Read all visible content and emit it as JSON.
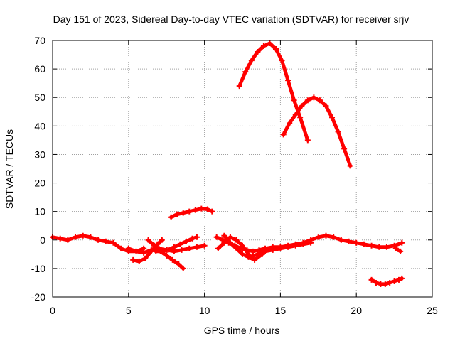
{
  "chart_data": {
    "type": "scatter",
    "title": "Day 151 of 2023, Sidereal Day-to-day VTEC variation (SDTVAR) for receiver srjv",
    "xlabel": "GPS time / hours",
    "ylabel": "SDTVAR / TECUs",
    "xlim": [
      0,
      25
    ],
    "ylim": [
      -20,
      70
    ],
    "x_ticks": [
      0,
      5,
      10,
      15,
      20,
      25
    ],
    "y_ticks": [
      -20,
      -10,
      0,
      10,
      20,
      30,
      40,
      50,
      60,
      70
    ],
    "x_tick_labels": [
      "0",
      "5",
      "10",
      "15",
      "20",
      "25"
    ],
    "y_tick_labels": [
      "-20",
      "-10",
      "0",
      "10",
      "20",
      "30",
      "40",
      "50",
      "60",
      "70"
    ],
    "grid": true,
    "legend": "none",
    "color": "#ff0000",
    "series": [
      {
        "x": [
          0,
          0.5,
          1,
          1.5,
          2,
          2.5,
          3,
          3.5,
          4,
          4.5,
          5,
          5.5,
          6
        ],
        "y": [
          1,
          0.5,
          0,
          1,
          1.5,
          1,
          0,
          -0.5,
          -1,
          -3,
          -4,
          -4,
          -3
        ]
      },
      {
        "x": [
          5,
          5.5,
          6,
          6.5,
          7,
          7.5,
          8,
          8.5,
          9,
          9.5,
          10
        ],
        "y": [
          -3,
          -4,
          -4.5,
          -3.5,
          -3,
          -3.5,
          -4,
          -3.5,
          -3,
          -2.5,
          -2
        ]
      },
      {
        "x": [
          5.3,
          5.7,
          6.1,
          6.5,
          6.9,
          7.2
        ],
        "y": [
          -7,
          -7.5,
          -6.5,
          -4,
          -1.5,
          0
        ]
      },
      {
        "x": [
          6.3,
          6.7,
          7.1,
          7.5,
          7.9,
          8.3,
          8.6
        ],
        "y": [
          0,
          -2,
          -4,
          -5.5,
          -7,
          -8.5,
          -10
        ]
      },
      {
        "x": [
          6.8,
          7.2,
          7.6,
          8,
          8.4,
          8.8,
          9.2,
          9.5
        ],
        "y": [
          -4,
          -4,
          -3.5,
          -2.5,
          -1.5,
          -0.5,
          0.5,
          1
        ]
      },
      {
        "x": [
          7.8,
          8.2,
          8.6,
          9,
          9.4,
          9.8,
          10.2,
          10.5
        ],
        "y": [
          8,
          9,
          9.5,
          10,
          10.5,
          11,
          10.8,
          10
        ]
      },
      {
        "x": [
          10.8,
          11.2,
          11.6,
          12,
          12.4,
          12.8,
          13.2,
          13.6,
          14,
          14.5,
          15,
          15.5,
          16,
          16.5,
          17,
          17.5,
          18,
          18.5,
          19,
          19.5,
          20,
          20.5,
          21,
          21.5,
          22,
          22.5,
          23
        ],
        "y": [
          1,
          0,
          -1,
          -2,
          -3,
          -3.5,
          -4,
          -3.5,
          -3,
          -2.5,
          -2.5,
          -2,
          -1.5,
          -1,
          0,
          1,
          1.5,
          1,
          0,
          -0.5,
          -1,
          -1.5,
          -2,
          -2.5,
          -2.5,
          -2,
          -1
        ]
      },
      {
        "x": [
          10.9,
          11.3,
          11.7,
          12.1,
          12.5,
          12.9
        ],
        "y": [
          -3,
          -1,
          1,
          0,
          -2,
          -5
        ]
      },
      {
        "x": [
          11.3,
          11.7,
          12.1,
          12.5,
          12.9,
          13.3,
          13.8
        ],
        "y": [
          1.5,
          -1,
          -3,
          -5,
          -6,
          -7,
          -5
        ]
      },
      {
        "x": [
          13,
          13.5,
          14,
          14.5,
          15,
          15.5,
          16,
          16.5,
          17
        ],
        "y": [
          -6,
          -5,
          -4,
          -3.5,
          -3,
          -2.5,
          -2,
          -1.5,
          -1
        ]
      },
      {
        "x": [
          12.3,
          12.7,
          13.1,
          13.5,
          13.9,
          14.3,
          14.7,
          15.1,
          15.5,
          15.9,
          16.3,
          16.8
        ],
        "y": [
          54,
          59,
          63,
          66,
          68,
          69,
          67,
          63,
          56,
          49,
          43,
          35
        ]
      },
      {
        "x": [
          15.2,
          15.6,
          16,
          16.4,
          16.8,
          17.2,
          17.6,
          18,
          18.4,
          18.8,
          19.2,
          19.6
        ],
        "y": [
          37,
          41,
          44,
          47,
          49,
          50,
          49,
          47,
          43,
          38,
          32,
          26
        ]
      },
      {
        "x": [
          21,
          21.3,
          21.6,
          21.9,
          22.2,
          22.5,
          22.8,
          23
        ],
        "y": [
          -14,
          -15,
          -15.5,
          -15.5,
          -15,
          -14.5,
          -14,
          -13.5
        ]
      },
      {
        "x": [
          22.6,
          22.9
        ],
        "y": [
          -3,
          -4
        ]
      }
    ]
  }
}
